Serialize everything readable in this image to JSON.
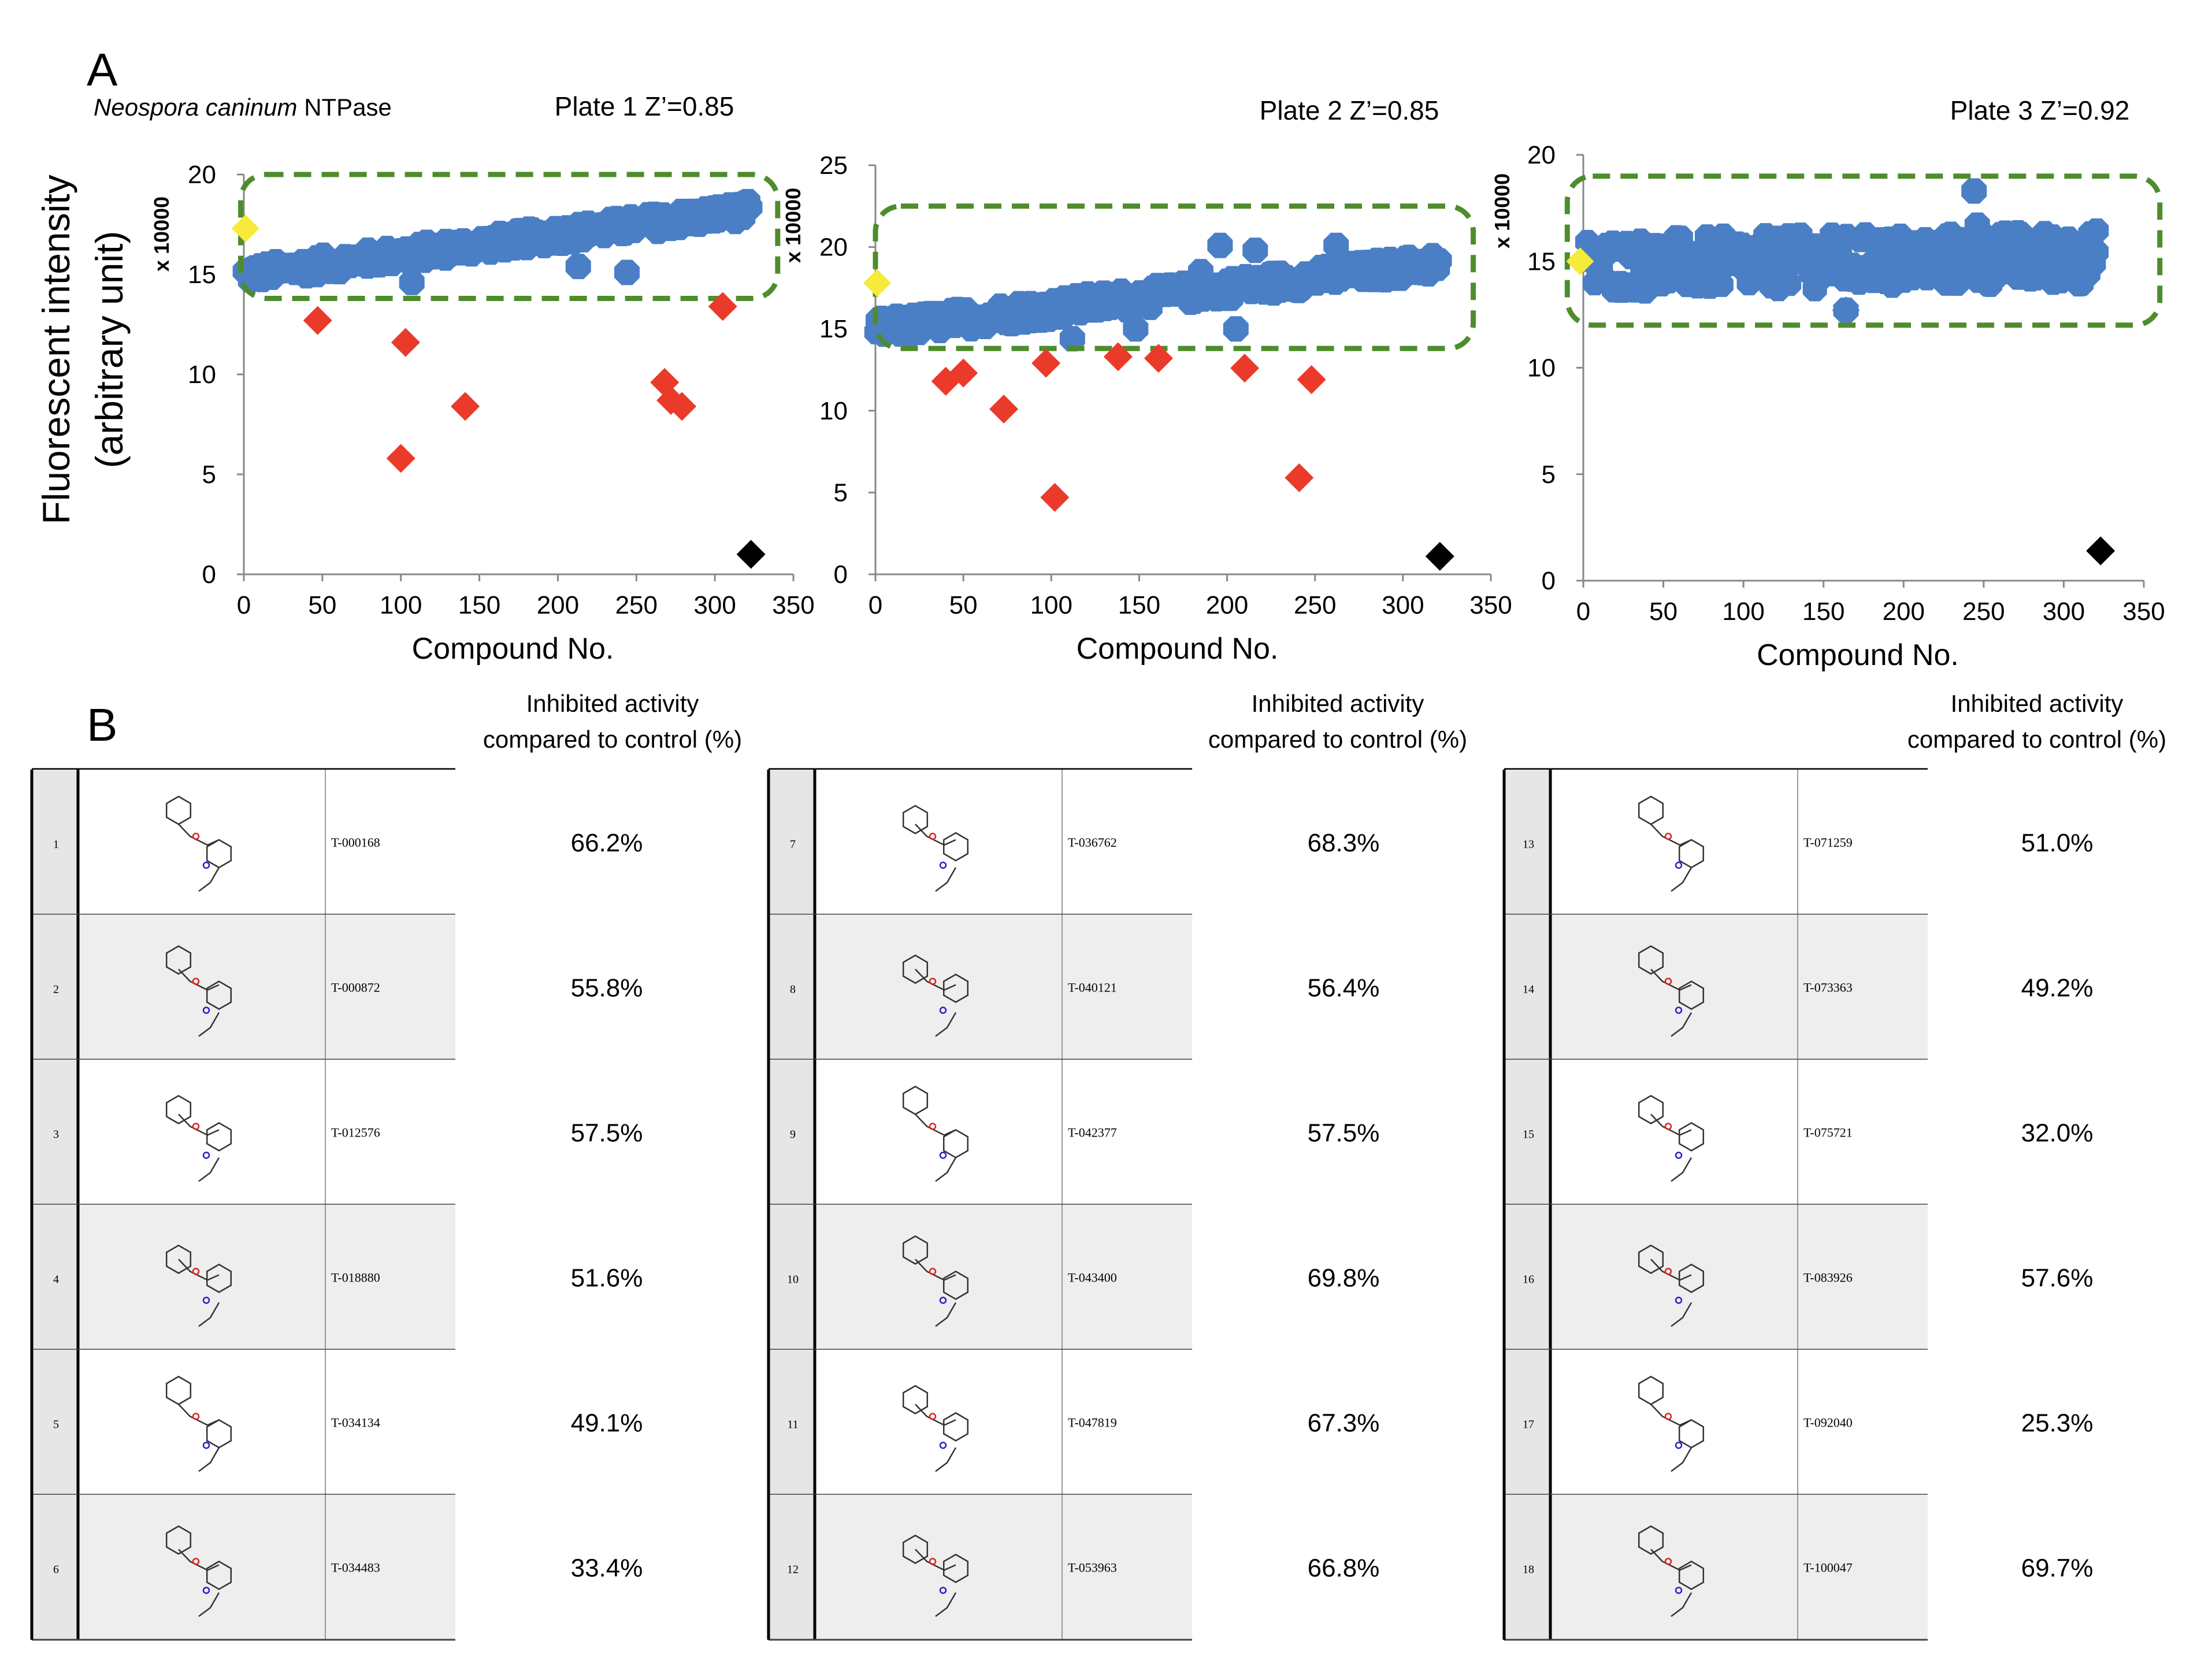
{
  "panel_a_letter": "A",
  "panel_b_letter": "B",
  "figure_subtitle": "Neospora caninum NTPase",
  "subtitle_italic": "Neospora caninum",
  "subtitle_rest": " NTPase",
  "y_axis_title_line1": "Fluorescent intensity",
  "y_axis_title_line2": "(arbitrary unit)",
  "colors": {
    "active": "#4a7fc6",
    "hit": "#ea3a2a",
    "positive_control": "#f6ea3a",
    "negative_control": "#000000",
    "threshold_box": "#4e8c2c"
  },
  "chart_data": [
    {
      "type": "scatter",
      "title": "Plate 1 Z’=0.85",
      "xlabel": "Compound No.",
      "ylabel_multiplier": "x 10000",
      "xlim": [
        0,
        350
      ],
      "ylim": [
        0,
        20
      ],
      "xticks": [
        0,
        50,
        100,
        150,
        200,
        250,
        300,
        350
      ],
      "yticks": [
        0,
        5,
        10,
        15,
        20
      ],
      "main_trend": {
        "start": [
          1,
          15.0
        ],
        "end": [
          322,
          18.2
        ],
        "spread": 0.5
      },
      "threshold_box": {
        "x": [
          -2,
          340
        ],
        "y": [
          13.8,
          20.0
        ]
      },
      "hits": [
        [
          47,
          12.7
        ],
        [
          103,
          11.6
        ],
        [
          100,
          5.8
        ],
        [
          141,
          8.4
        ],
        [
          268,
          9.6
        ],
        [
          272,
          8.7
        ],
        [
          279,
          8.4
        ],
        [
          305,
          13.4
        ]
      ],
      "outliers_low": [
        [
          107,
          14.6
        ],
        [
          213,
          15.4
        ],
        [
          244,
          15.1
        ]
      ],
      "positive_control": [
        [
          1,
          17.3
        ]
      ],
      "negative_control": [
        [
          323,
          1.0
        ]
      ]
    },
    {
      "type": "scatter",
      "title": "Plate 2 Z’=0.85",
      "xlabel": "Compound No.",
      "ylabel_multiplier": "x 10000",
      "xlim": [
        0,
        350
      ],
      "ylim": [
        0,
        25
      ],
      "xticks": [
        0,
        50,
        100,
        150,
        200,
        250,
        300,
        350
      ],
      "yticks": [
        0,
        5,
        10,
        15,
        20,
        25
      ],
      "main_trend": {
        "start": [
          1,
          15.0
        ],
        "end": [
          320,
          19.0
        ],
        "spread": 0.7
      },
      "threshold_box": {
        "x": [
          0,
          340
        ],
        "y": [
          13.8,
          22.5
        ]
      },
      "hits": [
        [
          40,
          11.8
        ],
        [
          50,
          12.3
        ],
        [
          73,
          10.1
        ],
        [
          97,
          12.9
        ],
        [
          102,
          4.7
        ],
        [
          138,
          13.3
        ],
        [
          161,
          13.2
        ],
        [
          210,
          12.6
        ],
        [
          241,
          5.9
        ],
        [
          248,
          11.9
        ]
      ],
      "outliers_high": [
        [
          196,
          20.1
        ],
        [
          216,
          19.8
        ],
        [
          262,
          20.1
        ],
        [
          185,
          18.5
        ]
      ],
      "outliers_low": [
        [
          112,
          14.4
        ],
        [
          148,
          15.0
        ],
        [
          205,
          15.0
        ]
      ],
      "positive_control": [
        [
          1,
          17.8
        ]
      ],
      "negative_control": [
        [
          321,
          1.1
        ]
      ]
    },
    {
      "type": "scatter",
      "title": "Plate 3 Z’=0.92",
      "xlabel": "Compound No.",
      "ylabel_multiplier": "x 10000",
      "xlim": [
        0,
        350
      ],
      "ylim": [
        0,
        20
      ],
      "xticks": [
        0,
        50,
        100,
        150,
        200,
        250,
        300,
        350
      ],
      "yticks": [
        0,
        5,
        10,
        15,
        20
      ],
      "main_trend": {
        "start": [
          3,
          14.8
        ],
        "end": [
          320,
          15.2
        ],
        "spread": 1.3
      },
      "threshold_box": {
        "x": [
          -10,
          360
        ],
        "y": [
          12.0,
          19.0
        ]
      },
      "hits": [],
      "outliers_low": [
        [
          164,
          12.7
        ]
      ],
      "outliers_high": [
        [
          244,
          18.3
        ],
        [
          246,
          16.7
        ]
      ],
      "positive_control": [
        [
          -2,
          15.0
        ]
      ],
      "negative_control": [
        [
          323,
          1.4
        ]
      ]
    }
  ],
  "table": {
    "header_line1": "Inhibited activity",
    "header_line2": "compared to control (%)",
    "header_line2_variant": "compared to control (%)",
    "columns": [
      {
        "rows": [
          {
            "num": "1",
            "id": "T-000168",
            "pct": "66.2%"
          },
          {
            "num": "2",
            "id": "T-000872",
            "pct": "55.8%"
          },
          {
            "num": "3",
            "id": "T-012576",
            "pct": "57.5%"
          },
          {
            "num": "4",
            "id": "T-018880",
            "pct": "51.6%"
          },
          {
            "num": "5",
            "id": "T-034134",
            "pct": "49.1%"
          },
          {
            "num": "6",
            "id": "T-034483",
            "pct": "33.4%"
          }
        ]
      },
      {
        "rows": [
          {
            "num": "7",
            "id": "T-036762",
            "pct": "68.3%"
          },
          {
            "num": "8",
            "id": "T-040121",
            "pct": "56.4%"
          },
          {
            "num": "9",
            "id": "T-042377",
            "pct": "57.5%"
          },
          {
            "num": "10",
            "id": "T-043400",
            "pct": "69.8%"
          },
          {
            "num": "11",
            "id": "T-047819",
            "pct": "67.3%"
          },
          {
            "num": "12",
            "id": "T-053963",
            "pct": "66.8%"
          }
        ]
      },
      {
        "rows": [
          {
            "num": "13",
            "id": "T-071259",
            "pct": "51.0%"
          },
          {
            "num": "14",
            "id": "T-073363",
            "pct": "49.2%"
          },
          {
            "num": "15",
            "id": "T-075721",
            "pct": "32.0%"
          },
          {
            "num": "16",
            "id": "T-083926",
            "pct": "57.6%"
          },
          {
            "num": "17",
            "id": "T-092040",
            "pct": "25.3%"
          },
          {
            "num": "18",
            "id": "T-100047",
            "pct": "69.7%"
          }
        ]
      }
    ]
  }
}
